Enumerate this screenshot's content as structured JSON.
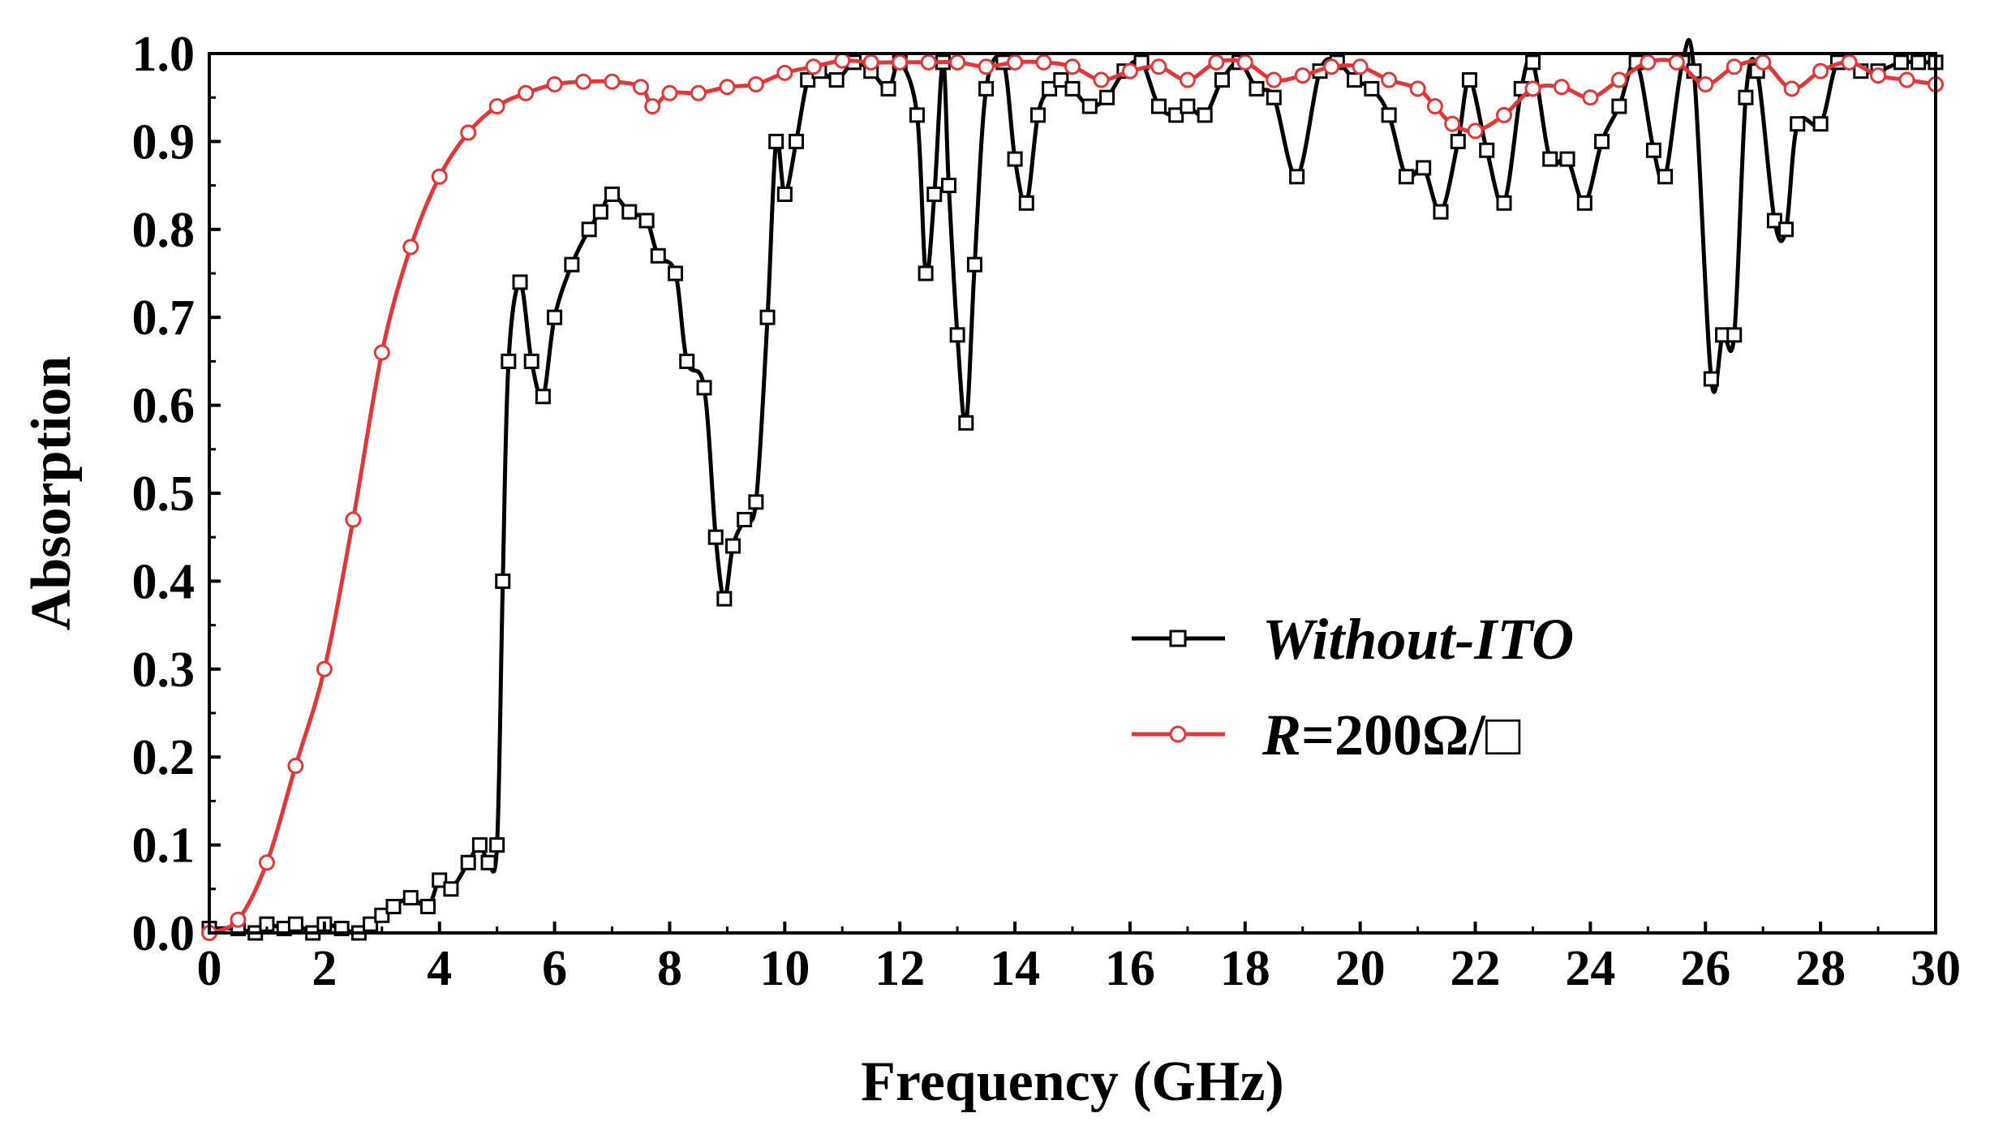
{
  "chart_data": {
    "type": "line",
    "title": "",
    "xlabel": "Frequency (GHz)",
    "ylabel": "Absorption",
    "xlim": [
      0,
      30
    ],
    "ylim": [
      0,
      1.0
    ],
    "xticks": [
      0,
      2,
      4,
      6,
      8,
      10,
      12,
      14,
      16,
      18,
      20,
      22,
      24,
      26,
      28,
      30
    ],
    "yticks": [
      0.0,
      0.1,
      0.2,
      0.3,
      0.4,
      0.5,
      0.6,
      0.7,
      0.8,
      0.9,
      1.0
    ],
    "xtick_labels": [
      "0",
      "2",
      "4",
      "6",
      "8",
      "10",
      "12",
      "14",
      "16",
      "18",
      "20",
      "22",
      "24",
      "26",
      "28",
      "30"
    ],
    "ytick_labels": [
      "0.0",
      "0.1",
      "0.2",
      "0.3",
      "0.4",
      "0.5",
      "0.6",
      "0.7",
      "0.8",
      "0.9",
      "1.0"
    ],
    "legend_position": "center-right",
    "series": [
      {
        "name": "Without-ITO",
        "legend_label": "Without-ITO",
        "color": "#000000",
        "marker": "square",
        "x": [
          0,
          0.5,
          0.8,
          1,
          1.3,
          1.5,
          1.8,
          2,
          2.3,
          2.6,
          2.8,
          3,
          3.2,
          3.5,
          3.8,
          4,
          4.2,
          4.5,
          4.7,
          4.85,
          5.0,
          5.1,
          5.2,
          5.4,
          5.6,
          5.8,
          6.0,
          6.3,
          6.6,
          6.8,
          7.0,
          7.3,
          7.6,
          7.8,
          8.1,
          8.3,
          8.6,
          8.8,
          8.95,
          9.1,
          9.3,
          9.5,
          9.7,
          9.85,
          10.0,
          10.2,
          10.4,
          10.6,
          10.9,
          11.2,
          11.5,
          11.8,
          12.0,
          12.3,
          12.45,
          12.6,
          12.75,
          12.85,
          13.0,
          13.15,
          13.3,
          13.5,
          13.8,
          14.0,
          14.2,
          14.4,
          14.6,
          14.8,
          15.0,
          15.3,
          15.6,
          15.9,
          16.2,
          16.5,
          16.8,
          17.0,
          17.3,
          17.6,
          17.9,
          18.2,
          18.5,
          18.9,
          19.3,
          19.6,
          19.9,
          20.2,
          20.5,
          20.8,
          21.1,
          21.4,
          21.7,
          21.9,
          22.2,
          22.5,
          22.8,
          23.0,
          23.3,
          23.6,
          23.9,
          24.2,
          24.5,
          24.8,
          25.1,
          25.3,
          25.6,
          25.8,
          26.1,
          26.3,
          26.5,
          26.7,
          26.9,
          27.2,
          27.4,
          27.6,
          28.0,
          28.3,
          28.7,
          29.0,
          29.4,
          29.7,
          30.0
        ],
        "y": [
          0.005,
          0.005,
          0.0,
          0.01,
          0.005,
          0.01,
          0.0,
          0.01,
          0.005,
          0.0,
          0.01,
          0.02,
          0.03,
          0.04,
          0.03,
          0.06,
          0.05,
          0.08,
          0.1,
          0.08,
          0.1,
          0.4,
          0.65,
          0.74,
          0.65,
          0.61,
          0.7,
          0.76,
          0.8,
          0.82,
          0.84,
          0.82,
          0.81,
          0.77,
          0.75,
          0.65,
          0.62,
          0.45,
          0.38,
          0.44,
          0.47,
          0.49,
          0.7,
          0.9,
          0.84,
          0.9,
          0.97,
          0.98,
          0.97,
          0.99,
          0.98,
          0.96,
          0.99,
          0.93,
          0.75,
          0.84,
          0.99,
          0.85,
          0.68,
          0.58,
          0.76,
          0.96,
          0.99,
          0.88,
          0.83,
          0.93,
          0.96,
          0.97,
          0.96,
          0.94,
          0.95,
          0.98,
          0.99,
          0.94,
          0.93,
          0.94,
          0.93,
          0.97,
          0.99,
          0.96,
          0.95,
          0.86,
          0.98,
          0.99,
          0.97,
          0.96,
          0.93,
          0.86,
          0.87,
          0.82,
          0.9,
          0.97,
          0.89,
          0.83,
          0.96,
          0.99,
          0.88,
          0.88,
          0.83,
          0.9,
          0.94,
          0.99,
          0.89,
          0.86,
          0.99,
          0.98,
          0.63,
          0.68,
          0.68,
          0.95,
          0.98,
          0.81,
          0.8,
          0.92,
          0.92,
          0.99,
          0.98,
          0.98,
          0.99,
          0.99,
          0.99
        ]
      },
      {
        "name": "R=200Ω/□",
        "legend_label_italic": "R",
        "legend_label_rest": "=200Ω/□",
        "color": "#e0383a",
        "marker": "circle",
        "x": [
          0,
          0.5,
          1.0,
          1.5,
          2.0,
          2.5,
          3.0,
          3.5,
          4.0,
          4.5,
          5.0,
          5.5,
          6.0,
          6.5,
          7.0,
          7.5,
          7.7,
          8.0,
          8.5,
          9.0,
          9.5,
          10.0,
          10.5,
          11.0,
          11.5,
          12.0,
          12.5,
          13.0,
          13.5,
          14.0,
          14.5,
          15.0,
          15.5,
          16.0,
          16.5,
          17.0,
          17.5,
          18.0,
          18.5,
          19.0,
          19.5,
          20.0,
          20.5,
          21.0,
          21.3,
          21.6,
          22.0,
          22.5,
          23.0,
          23.5,
          24.0,
          24.5,
          25.0,
          25.5,
          26.0,
          26.5,
          27.0,
          27.5,
          28.0,
          28.5,
          29.0,
          29.5,
          30.0
        ],
        "y": [
          0.0,
          0.015,
          0.08,
          0.19,
          0.3,
          0.47,
          0.66,
          0.78,
          0.86,
          0.91,
          0.94,
          0.955,
          0.965,
          0.968,
          0.968,
          0.962,
          0.94,
          0.955,
          0.955,
          0.962,
          0.965,
          0.978,
          0.985,
          0.992,
          0.99,
          0.99,
          0.99,
          0.99,
          0.985,
          0.99,
          0.99,
          0.985,
          0.97,
          0.98,
          0.985,
          0.97,
          0.99,
          0.99,
          0.97,
          0.975,
          0.985,
          0.985,
          0.97,
          0.96,
          0.94,
          0.92,
          0.912,
          0.93,
          0.96,
          0.962,
          0.95,
          0.97,
          0.99,
          0.99,
          0.965,
          0.985,
          0.99,
          0.96,
          0.98,
          0.99,
          0.975,
          0.97,
          0.965
        ]
      }
    ]
  }
}
